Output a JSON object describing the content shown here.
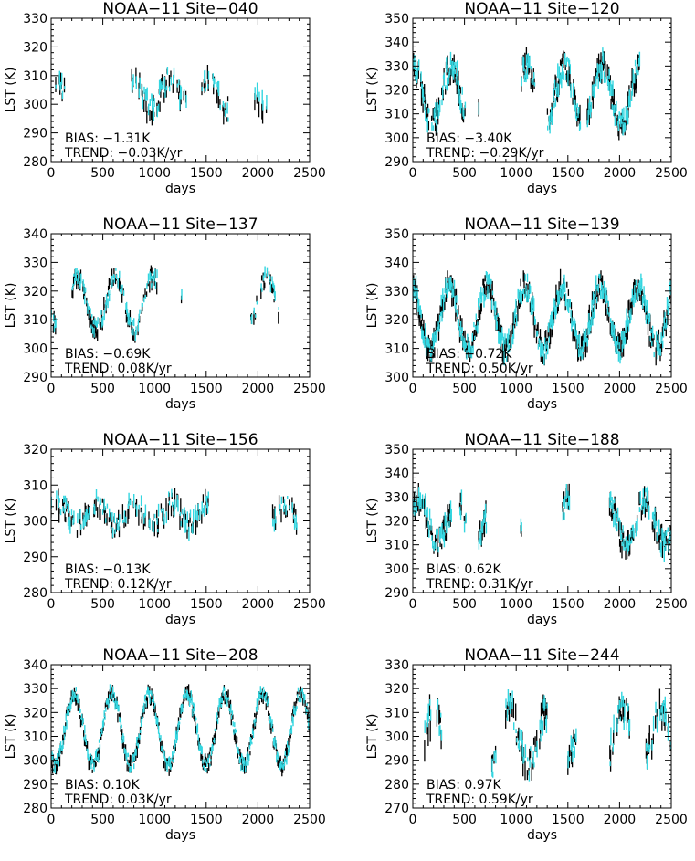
{
  "figure": {
    "series_colors": {
      "reference": "#000000",
      "retrieved": "#33d6e0"
    },
    "x_axis_label": "days",
    "y_axis_label": "LST (K)"
  },
  "chart_data": [
    {
      "type": "line",
      "title": "NOAA−11 Site−040",
      "xlabel": "days",
      "ylabel": "LST (K)",
      "xlim": [
        0,
        2500
      ],
      "ylim": [
        280,
        330
      ],
      "xticks": [
        0,
        500,
        1000,
        1500,
        2000,
        2500
      ],
      "yticks": [
        280,
        290,
        300,
        310,
        320,
        330
      ],
      "annotations": [
        "BIAS: −1.31K",
        "TREND: −0.03K/yr"
      ],
      "seasonal": {
        "mean": 303.5,
        "amplitude": 5,
        "noise": 4,
        "coverage": 0.5,
        "start_day": 30,
        "peak_day": 1150
      }
    },
    {
      "type": "line",
      "title": "NOAA−11 Site−120",
      "xlabel": "days",
      "ylabel": "LST (K)",
      "xlim": [
        0,
        2500
      ],
      "ylim": [
        290,
        350
      ],
      "xticks": [
        0,
        500,
        1000,
        1500,
        2000,
        2500
      ],
      "yticks": [
        290,
        300,
        310,
        320,
        330,
        340,
        350
      ],
      "annotations": [
        "BIAS: −3.40K",
        "TREND: −0.29K/yr"
      ],
      "seasonal": {
        "mean": 318,
        "amplitude": 12,
        "noise": 5,
        "coverage": 0.85,
        "start_day": 0,
        "peak_day": 1100
      }
    },
    {
      "type": "line",
      "title": "NOAA−11 Site−137",
      "xlabel": "days",
      "ylabel": "LST (K)",
      "xlim": [
        0,
        2500
      ],
      "ylim": [
        290,
        340
      ],
      "xticks": [
        0,
        500,
        1000,
        1500,
        2000,
        2500
      ],
      "yticks": [
        290,
        300,
        310,
        320,
        330,
        340
      ],
      "annotations": [
        "BIAS: −0.69K",
        "TREND: 0.08K/yr"
      ],
      "seasonal": {
        "mean": 316,
        "amplitude": 9,
        "noise": 3,
        "coverage": 0.72,
        "start_day": 0,
        "peak_day": 1350
      }
    },
    {
      "type": "line",
      "title": "NOAA−11 Site−139",
      "xlabel": "days",
      "ylabel": "LST (K)",
      "xlim": [
        0,
        2500
      ],
      "ylim": [
        300,
        350
      ],
      "xticks": [
        0,
        500,
        1000,
        1500,
        2000,
        2500
      ],
      "yticks": [
        300,
        310,
        320,
        330,
        340,
        350
      ],
      "annotations": [
        "BIAS: −0.72K",
        "TREND: 0.50K/yr"
      ],
      "seasonal": {
        "mean": 321,
        "amplitude": 11,
        "noise": 4,
        "coverage": 0.95,
        "start_day": 0,
        "peak_day": 1080
      }
    },
    {
      "type": "line",
      "title": "NOAA−11 Site−156",
      "xlabel": "days",
      "ylabel": "LST (K)",
      "xlim": [
        0,
        2500
      ],
      "ylim": [
        280,
        320
      ],
      "xticks": [
        0,
        500,
        1000,
        1500,
        2000,
        2500
      ],
      "yticks": [
        280,
        290,
        300,
        310,
        320
      ],
      "annotations": [
        "BIAS: −0.13K",
        "TREND: 0.12K/yr"
      ],
      "seasonal": {
        "mean": 302,
        "amplitude": 3,
        "noise": 3,
        "coverage": 0.45,
        "start_day": 0,
        "peak_day": 800
      }
    },
    {
      "type": "line",
      "title": "NOAA−11 Site−188",
      "xlabel": "days",
      "ylabel": "LST (K)",
      "xlim": [
        0,
        2500
      ],
      "ylim": [
        290,
        350
      ],
      "xticks": [
        0,
        500,
        1000,
        1500,
        2000,
        2500
      ],
      "yticks": [
        290,
        300,
        310,
        320,
        330,
        340,
        350
      ],
      "annotations": [
        "BIAS: 0.62K",
        "TREND: 0.31K/yr"
      ],
      "seasonal": {
        "mean": 320,
        "amplitude": 9,
        "noise": 5,
        "coverage": 0.8,
        "start_day": 0,
        "peak_day": 1150
      }
    },
    {
      "type": "line",
      "title": "NOAA−11 Site−208",
      "xlabel": "days",
      "ylabel": "LST (K)",
      "xlim": [
        0,
        2500
      ],
      "ylim": [
        280,
        340
      ],
      "xticks": [
        0,
        500,
        1000,
        1500,
        2000,
        2500
      ],
      "yticks": [
        280,
        290,
        300,
        310,
        320,
        330,
        340
      ],
      "annotations": [
        "BIAS: 0.10K",
        "TREND: 0.03K/yr"
      ],
      "seasonal": {
        "mean": 313,
        "amplitude": 15,
        "noise": 3,
        "coverage": 1.0,
        "start_day": 0,
        "peak_day": 950
      }
    },
    {
      "type": "line",
      "title": "NOAA−11 Site−244",
      "xlabel": "days",
      "ylabel": "LST (K)",
      "xlim": [
        0,
        2500
      ],
      "ylim": [
        270,
        330
      ],
      "xticks": [
        0,
        500,
        1000,
        1500,
        2000,
        2500
      ],
      "yticks": [
        270,
        280,
        290,
        300,
        310,
        320,
        330
      ],
      "annotations": [
        "BIAS: 0.97K",
        "TREND: 0.59K/yr"
      ],
      "seasonal": {
        "mean": 300,
        "amplitude": 11,
        "noise": 6,
        "coverage": 0.55,
        "start_day": 100,
        "peak_day": 1300
      }
    }
  ]
}
